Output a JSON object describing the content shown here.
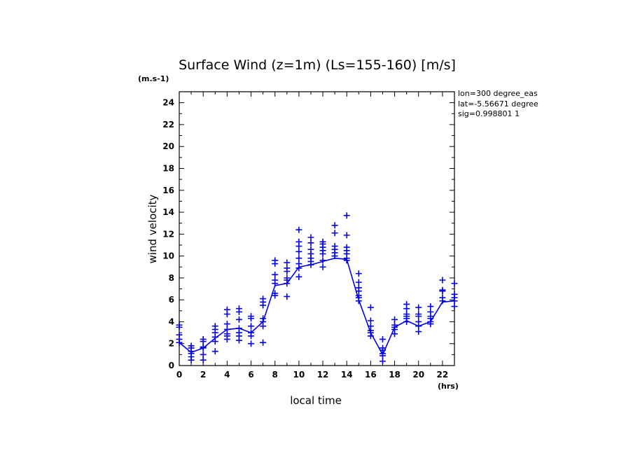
{
  "chart_data": {
    "type": "line",
    "title": "Surface Wind (z=1m) (Ls=155-160) [m/s]",
    "xlabel": "local time",
    "ylabel": "wind velocity",
    "x_unit": "(hrs)",
    "y_unit": "(m.s-1)",
    "xlim": [
      0,
      23
    ],
    "ylim": [
      0,
      25
    ],
    "x_ticks": [
      0,
      2,
      4,
      6,
      8,
      10,
      12,
      14,
      16,
      18,
      20,
      22
    ],
    "y_ticks": [
      0,
      2,
      4,
      6,
      8,
      10,
      12,
      14,
      16,
      18,
      20,
      22,
      24
    ],
    "grid": false,
    "annotations": [
      "lon=300 degree_eas",
      "lat=-5.56671 degree",
      "sig=0.998801 1"
    ],
    "series": [
      {
        "type": "line",
        "color": "#0000ee",
        "x": [
          0,
          1,
          2,
          3,
          4,
          5,
          6,
          7,
          8,
          9,
          10,
          11,
          12,
          13,
          14,
          15,
          16,
          17,
          18,
          19,
          20,
          21,
          22,
          23
        ],
        "y": [
          2.1,
          1.2,
          1.6,
          2.5,
          3.3,
          3.4,
          3.0,
          4.0,
          7.3,
          7.5,
          9.0,
          9.2,
          9.5,
          9.8,
          9.7,
          6.0,
          3.0,
          1.0,
          3.5,
          4.1,
          3.6,
          4.0,
          5.8,
          5.9
        ]
      },
      {
        "type": "scatter",
        "marker": "+",
        "color": "#0000ee",
        "points": [
          [
            0,
            3.7
          ],
          [
            0,
            3.5
          ],
          [
            0,
            2.8
          ],
          [
            0,
            2.4
          ],
          [
            0,
            2.1
          ],
          [
            1,
            1.8
          ],
          [
            1,
            1.6
          ],
          [
            1,
            1.3
          ],
          [
            1,
            1.1
          ],
          [
            1,
            0.8
          ],
          [
            1,
            0.5
          ],
          [
            2,
            2.4
          ],
          [
            2,
            2.2
          ],
          [
            2,
            1.7
          ],
          [
            2,
            1.6
          ],
          [
            2,
            1.0
          ],
          [
            2,
            0.5
          ],
          [
            3,
            3.6
          ],
          [
            3,
            3.3
          ],
          [
            3,
            3.0
          ],
          [
            3,
            2.6
          ],
          [
            3,
            2.2
          ],
          [
            3,
            1.3
          ],
          [
            4,
            5.1
          ],
          [
            4,
            4.7
          ],
          [
            4,
            3.8
          ],
          [
            4,
            3.3
          ],
          [
            4,
            2.9
          ],
          [
            4,
            2.7
          ],
          [
            4,
            2.4
          ],
          [
            5,
            5.2
          ],
          [
            5,
            4.9
          ],
          [
            5,
            4.2
          ],
          [
            5,
            3.4
          ],
          [
            5,
            3.0
          ],
          [
            5,
            2.7
          ],
          [
            5,
            2.3
          ],
          [
            6,
            4.5
          ],
          [
            6,
            4.3
          ],
          [
            6,
            3.6
          ],
          [
            6,
            3.0
          ],
          [
            6,
            2.7
          ],
          [
            6,
            2.0
          ],
          [
            7,
            6.1
          ],
          [
            7,
            5.8
          ],
          [
            7,
            5.5
          ],
          [
            7,
            4.3
          ],
          [
            7,
            4.0
          ],
          [
            7,
            3.6
          ],
          [
            7,
            2.1
          ],
          [
            8,
            9.6
          ],
          [
            8,
            9.3
          ],
          [
            8,
            8.3
          ],
          [
            8,
            7.8
          ],
          [
            8,
            7.5
          ],
          [
            8,
            6.6
          ],
          [
            8,
            6.4
          ],
          [
            9,
            9.4
          ],
          [
            9,
            8.9
          ],
          [
            9,
            8.6
          ],
          [
            9,
            8.0
          ],
          [
            9,
            7.8
          ],
          [
            9,
            7.5
          ],
          [
            9,
            6.3
          ],
          [
            10,
            12.4
          ],
          [
            10,
            11.3
          ],
          [
            10,
            10.9
          ],
          [
            10,
            10.4
          ],
          [
            10,
            9.8
          ],
          [
            10,
            9.3
          ],
          [
            10,
            8.9
          ],
          [
            10,
            8.1
          ],
          [
            11,
            11.7
          ],
          [
            11,
            11.2
          ],
          [
            11,
            10.6
          ],
          [
            11,
            10.2
          ],
          [
            11,
            9.8
          ],
          [
            11,
            9.5
          ],
          [
            11,
            9.2
          ],
          [
            12,
            11.3
          ],
          [
            12,
            11.1
          ],
          [
            12,
            10.8
          ],
          [
            12,
            10.5
          ],
          [
            12,
            10.2
          ],
          [
            12,
            9.6
          ],
          [
            12,
            9.0
          ],
          [
            13,
            12.8
          ],
          [
            13,
            12.1
          ],
          [
            13,
            10.9
          ],
          [
            13,
            10.6
          ],
          [
            13,
            10.3
          ],
          [
            13,
            10.0
          ],
          [
            14,
            13.7
          ],
          [
            14,
            11.9
          ],
          [
            14,
            10.8
          ],
          [
            14,
            10.5
          ],
          [
            14,
            10.2
          ],
          [
            14,
            9.8
          ],
          [
            14,
            9.6
          ],
          [
            15,
            8.4
          ],
          [
            15,
            7.6
          ],
          [
            15,
            7.1
          ],
          [
            15,
            6.8
          ],
          [
            15,
            6.4
          ],
          [
            15,
            6.2
          ],
          [
            15,
            5.9
          ],
          [
            16,
            5.3
          ],
          [
            16,
            4.1
          ],
          [
            16,
            3.6
          ],
          [
            16,
            3.2
          ],
          [
            16,
            3.0
          ],
          [
            16,
            2.7
          ],
          [
            17,
            2.4
          ],
          [
            17,
            1.6
          ],
          [
            17,
            1.4
          ],
          [
            17,
            1.1
          ],
          [
            17,
            0.9
          ],
          [
            17,
            0.4
          ],
          [
            18,
            4.2
          ],
          [
            18,
            3.7
          ],
          [
            18,
            3.5
          ],
          [
            18,
            3.3
          ],
          [
            18,
            2.9
          ],
          [
            19,
            5.6
          ],
          [
            19,
            5.2
          ],
          [
            19,
            4.7
          ],
          [
            19,
            4.5
          ],
          [
            19,
            4.3
          ],
          [
            19,
            4.0
          ],
          [
            20,
            5.3
          ],
          [
            20,
            4.7
          ],
          [
            20,
            4.5
          ],
          [
            20,
            4.0
          ],
          [
            20,
            3.6
          ],
          [
            20,
            3.1
          ],
          [
            21,
            5.4
          ],
          [
            21,
            4.9
          ],
          [
            21,
            4.5
          ],
          [
            21,
            4.3
          ],
          [
            21,
            4.0
          ],
          [
            21,
            3.8
          ],
          [
            22,
            7.8
          ],
          [
            22,
            6.9
          ],
          [
            22,
            6.8
          ],
          [
            22,
            6.2
          ],
          [
            22,
            5.9
          ],
          [
            23,
            7.5
          ],
          [
            23,
            6.5
          ],
          [
            23,
            6.2
          ],
          [
            23,
            5.9
          ],
          [
            23,
            5.4
          ]
        ]
      }
    ]
  }
}
